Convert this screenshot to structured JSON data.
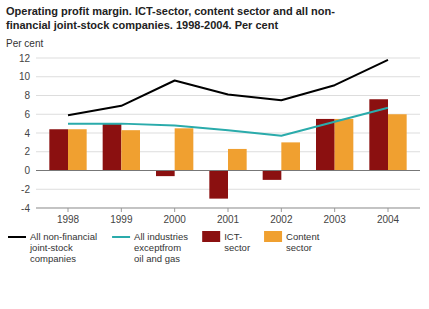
{
  "chart_data": {
    "type": "bar",
    "title": "Operating profit margin. ICT-sector, content sector and all non-\nfinancial joint-stock companies. 1998-2004. Per cent",
    "y_label": "Per cent",
    "categories": [
      "1998",
      "1999",
      "2000",
      "2001",
      "2002",
      "2003",
      "2004"
    ],
    "series": [
      {
        "name": "All non-financial\njoint-stock\ncompanies",
        "type": "line",
        "color": "#000000",
        "values": [
          5.9,
          6.9,
          9.6,
          8.1,
          7.5,
          9.1,
          11.8
        ]
      },
      {
        "name": "All industries\nexceptfrom\noil and gas",
        "type": "line",
        "color": "#2aabab",
        "values": [
          5.0,
          5.0,
          4.8,
          4.3,
          3.7,
          5.2,
          6.7
        ]
      },
      {
        "name": "ICT-\nsector",
        "type": "bar",
        "color": "#8b1010",
        "values": [
          4.4,
          5.0,
          -0.6,
          -3.0,
          -1.0,
          5.5,
          7.6
        ]
      },
      {
        "name": "Content\nsector",
        "type": "bar",
        "color": "#f0a030",
        "values": [
          4.4,
          4.3,
          4.5,
          2.3,
          3.0,
          5.5,
          6.0
        ]
      }
    ],
    "ylim": [
      -4,
      12
    ],
    "yticks": [
      -4,
      -2,
      0,
      2,
      4,
      6,
      8,
      10,
      12
    ],
    "grid": true,
    "legend": "bottom"
  }
}
